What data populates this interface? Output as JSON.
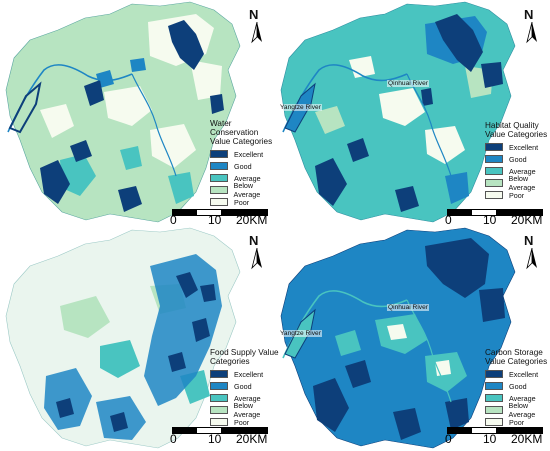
{
  "north_label": "N",
  "scale": {
    "labels": [
      "0",
      "10",
      "20KM"
    ]
  },
  "legend_categories": [
    "Excellent",
    "Good",
    "Average",
    "Below Average",
    "Poor"
  ],
  "panels": [
    {
      "id": "water-conservation",
      "legend_title": "Water Conservation Value Categories",
      "river_labels": []
    },
    {
      "id": "habitat-quality",
      "legend_title": "Habitat Quality Value Categories",
      "river_labels": [
        "Yangtze River",
        "Qinhuai River"
      ]
    },
    {
      "id": "food-supply",
      "legend_title": "Food Supply Value Categories",
      "river_labels": []
    },
    {
      "id": "carbon-storage",
      "legend_title": "Carbon Storage Value Categories",
      "river_labels": [
        "Yangtze River",
        "Qinhuai River"
      ]
    }
  ],
  "colors": {
    "excellent": "#0d3f7a",
    "good": "#1e86c4",
    "average": "#49c4c0",
    "below_average": "#b7e4c1",
    "poor": "#f6fbef"
  }
}
